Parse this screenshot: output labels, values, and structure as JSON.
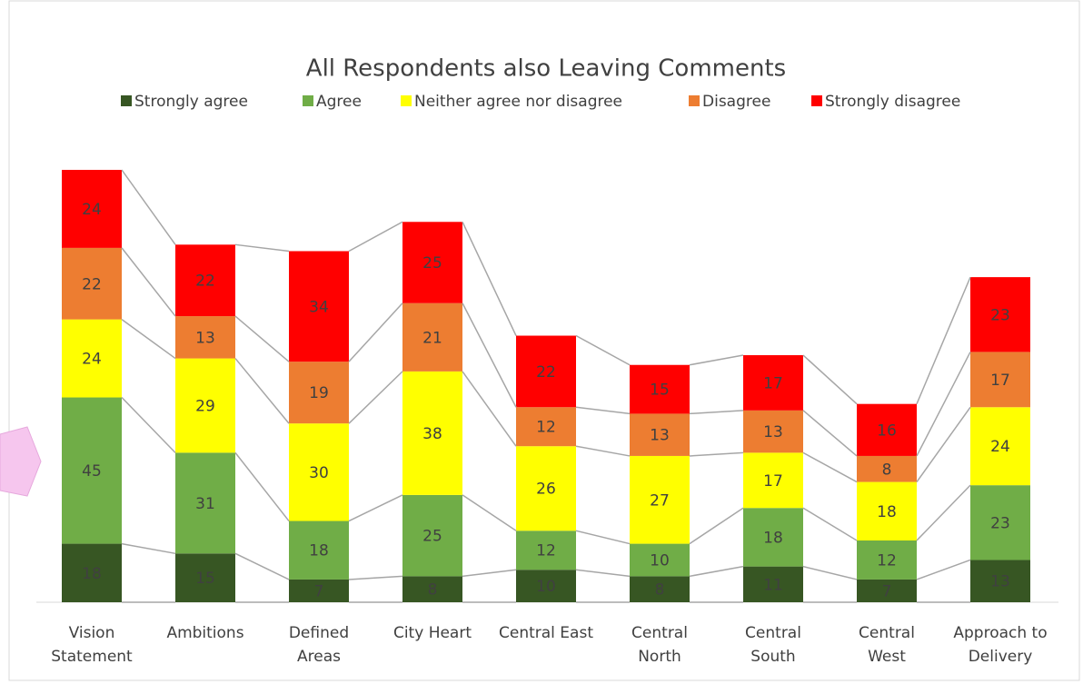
{
  "chart_data": {
    "type": "stacked_bar",
    "title": "All Respondents also Leaving Comments",
    "categories": [
      "Vision\nStatement",
      "Ambitions",
      "Defined\nAreas",
      "City Heart",
      "Central East",
      "Central\nNorth",
      "Central\nSouth",
      "Central\nWest",
      "Approach to\nDelivery"
    ],
    "series": [
      {
        "name": "Strongly agree",
        "color": "#375623",
        "values": [
          18,
          15,
          7,
          8,
          10,
          8,
          11,
          7,
          13
        ]
      },
      {
        "name": "Agree",
        "color": "#70ad47",
        "values": [
          45,
          31,
          18,
          25,
          12,
          10,
          18,
          12,
          23
        ]
      },
      {
        "name": "Neither agree nor disagree",
        "color": "#ffff00",
        "values": [
          24,
          29,
          30,
          38,
          26,
          27,
          17,
          18,
          24
        ]
      },
      {
        "name": "Disagree",
        "color": "#ed7d31",
        "values": [
          22,
          13,
          19,
          21,
          12,
          13,
          13,
          8,
          17
        ]
      },
      {
        "name": "Strongly disagree",
        "color": "#ff0000",
        "values": [
          24,
          22,
          34,
          25,
          22,
          15,
          17,
          16,
          23
        ]
      }
    ],
    "legend": "top"
  }
}
